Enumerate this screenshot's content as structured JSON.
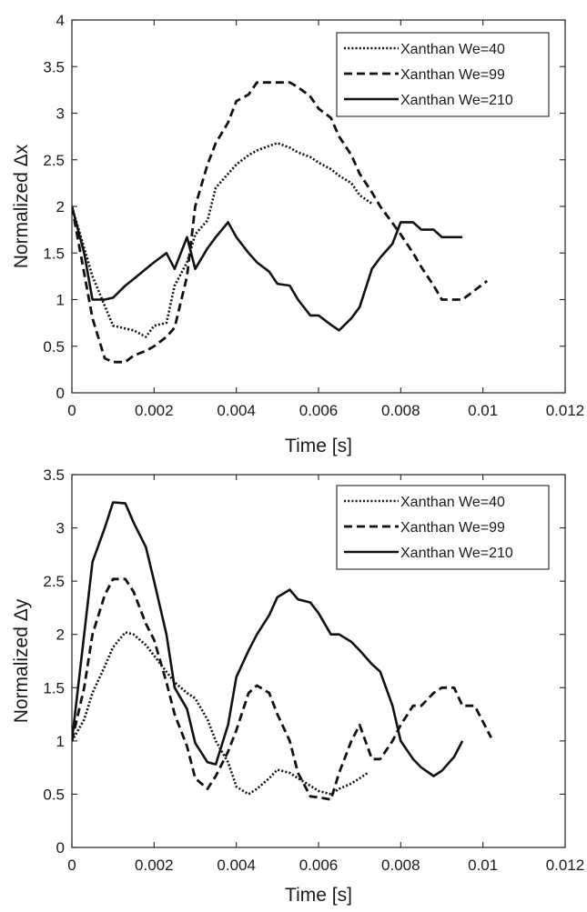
{
  "chart_data": [
    {
      "type": "line",
      "xlabel": "Time [s]",
      "ylabel": "Normalized Δx",
      "xlim": [
        0,
        0.012
      ],
      "ylim": [
        0,
        4
      ],
      "xticks": [
        0,
        0.002,
        0.004,
        0.006,
        0.008,
        0.01,
        0.012
      ],
      "xtick_labels": [
        "0",
        "0.002",
        "0.004",
        "0.006",
        "0.008",
        "0.01",
        "0.012"
      ],
      "yticks": [
        0,
        0.5,
        1,
        1.5,
        2,
        2.5,
        3,
        3.5,
        4
      ],
      "ytick_labels": [
        "0",
        "0.5",
        "1",
        "1.5",
        "2",
        "2.5",
        "3",
        "3.5",
        "4"
      ],
      "grid": false,
      "legend_position": "top-right",
      "series": [
        {
          "name": "Xanthan We=40",
          "style": "dotted",
          "x": [
            0,
            0.0005,
            0.001,
            0.0015,
            0.0018,
            0.002,
            0.0023,
            0.0025,
            0.0028,
            0.003,
            0.0033,
            0.0035,
            0.0038,
            0.004,
            0.0043,
            0.0045,
            0.0048,
            0.005,
            0.0053,
            0.0055,
            0.0058,
            0.006,
            0.0063,
            0.0065,
            0.0068,
            0.007,
            0.0073
          ],
          "y": [
            2.0,
            1.25,
            0.72,
            0.67,
            0.6,
            0.72,
            0.75,
            1.15,
            1.4,
            1.7,
            1.85,
            2.2,
            2.35,
            2.45,
            2.55,
            2.6,
            2.65,
            2.68,
            2.63,
            2.58,
            2.53,
            2.47,
            2.4,
            2.33,
            2.25,
            2.12,
            2.03
          ]
        },
        {
          "name": "Xanthan We=99",
          "style": "dashed",
          "x": [
            0,
            0.0005,
            0.0008,
            0.001,
            0.0013,
            0.0015,
            0.0018,
            0.002,
            0.0023,
            0.0025,
            0.0028,
            0.003,
            0.0033,
            0.0035,
            0.0038,
            0.004,
            0.0043,
            0.0045,
            0.0048,
            0.005,
            0.0053,
            0.0055,
            0.0058,
            0.006,
            0.0063,
            0.0065,
            0.0068,
            0.007,
            0.0073,
            0.0075,
            0.0078,
            0.008,
            0.0083,
            0.0085,
            0.0088,
            0.009,
            0.0095,
            0.0101
          ],
          "y": [
            2.0,
            0.8,
            0.37,
            0.33,
            0.33,
            0.4,
            0.45,
            0.5,
            0.6,
            0.7,
            1.25,
            2.0,
            2.45,
            2.68,
            2.9,
            3.13,
            3.2,
            3.33,
            3.33,
            3.33,
            3.33,
            3.28,
            3.18,
            3.05,
            2.95,
            2.75,
            2.55,
            2.35,
            2.15,
            2.0,
            1.82,
            1.7,
            1.5,
            1.35,
            1.15,
            1.0,
            1.0,
            1.2
          ]
        },
        {
          "name": "Xanthan We=210",
          "style": "solid",
          "x": [
            0,
            0.0003,
            0.0005,
            0.0008,
            0.001,
            0.0013,
            0.0015,
            0.0018,
            0.002,
            0.0023,
            0.0025,
            0.0028,
            0.003,
            0.0033,
            0.0035,
            0.0038,
            0.004,
            0.0043,
            0.0045,
            0.0048,
            0.005,
            0.0053,
            0.0055,
            0.0058,
            0.006,
            0.0063,
            0.0065,
            0.0068,
            0.007,
            0.0073,
            0.0075,
            0.0078,
            0.008,
            0.0083,
            0.0085,
            0.0088,
            0.009,
            0.0093,
            0.0095
          ],
          "y": [
            2.0,
            1.5,
            1.0,
            1.0,
            1.02,
            1.15,
            1.22,
            1.33,
            1.4,
            1.5,
            1.33,
            1.67,
            1.33,
            1.55,
            1.67,
            1.83,
            1.67,
            1.5,
            1.4,
            1.3,
            1.17,
            1.15,
            1.0,
            0.83,
            0.83,
            0.73,
            0.67,
            0.8,
            0.92,
            1.33,
            1.45,
            1.6,
            1.83,
            1.83,
            1.75,
            1.75,
            1.67,
            1.67,
            1.67
          ]
        }
      ]
    },
    {
      "type": "line",
      "xlabel": "Time [s]",
      "ylabel": "Normalized Δy",
      "xlim": [
        0,
        0.012
      ],
      "ylim": [
        0,
        3.5
      ],
      "xticks": [
        0,
        0.002,
        0.004,
        0.006,
        0.008,
        0.01,
        0.012
      ],
      "xtick_labels": [
        "0",
        "0.002",
        "0.004",
        "0.006",
        "0.008",
        "0.01",
        "0.012"
      ],
      "yticks": [
        0,
        0.5,
        1,
        1.5,
        2,
        2.5,
        3,
        3.5
      ],
      "ytick_labels": [
        "0",
        "0.5",
        "1",
        "1.5",
        "2",
        "2.5",
        "3",
        "3.5"
      ],
      "grid": false,
      "legend_position": "top-right",
      "series": [
        {
          "name": "Xanthan We=40",
          "style": "dotted",
          "x": [
            0,
            0.0003,
            0.0005,
            0.0008,
            0.001,
            0.0013,
            0.0015,
            0.0018,
            0.002,
            0.0023,
            0.0025,
            0.0028,
            0.003,
            0.0033,
            0.0035,
            0.0038,
            0.004,
            0.0043,
            0.0045,
            0.0048,
            0.005,
            0.0053,
            0.0055,
            0.0058,
            0.006,
            0.0063,
            0.0065,
            0.0068,
            0.007,
            0.0072
          ],
          "y": [
            1.0,
            1.2,
            1.45,
            1.7,
            1.88,
            2.02,
            2.0,
            1.9,
            1.8,
            1.65,
            1.55,
            1.45,
            1.4,
            1.2,
            1.0,
            0.8,
            0.57,
            0.5,
            0.55,
            0.65,
            0.73,
            0.7,
            0.65,
            0.58,
            0.53,
            0.5,
            0.55,
            0.6,
            0.65,
            0.7
          ]
        },
        {
          "name": "Xanthan We=99",
          "style": "dashed",
          "x": [
            0,
            0.0003,
            0.0005,
            0.0008,
            0.001,
            0.0013,
            0.0015,
            0.0018,
            0.002,
            0.0023,
            0.0025,
            0.0028,
            0.003,
            0.0033,
            0.0035,
            0.0038,
            0.004,
            0.0043,
            0.0045,
            0.0048,
            0.005,
            0.0053,
            0.0055,
            0.0058,
            0.006,
            0.0063,
            0.0065,
            0.0068,
            0.007,
            0.0073,
            0.0075,
            0.0078,
            0.008,
            0.0083,
            0.0085,
            0.0088,
            0.009,
            0.0093,
            0.0095,
            0.0098,
            0.0102
          ],
          "y": [
            1.0,
            1.5,
            2.0,
            2.37,
            2.52,
            2.52,
            2.4,
            2.1,
            1.95,
            1.55,
            1.25,
            0.95,
            0.65,
            0.55,
            0.67,
            0.9,
            1.1,
            1.45,
            1.52,
            1.45,
            1.25,
            1.0,
            0.7,
            0.48,
            0.47,
            0.45,
            0.7,
            1.0,
            1.15,
            0.83,
            0.83,
            1.0,
            1.15,
            1.33,
            1.33,
            1.45,
            1.5,
            1.5,
            1.33,
            1.33,
            1.03
          ]
        },
        {
          "name": "Xanthan We=210",
          "style": "solid",
          "x": [
            0,
            0.0003,
            0.0005,
            0.0008,
            0.001,
            0.0013,
            0.0015,
            0.0018,
            0.002,
            0.0023,
            0.0025,
            0.0028,
            0.003,
            0.0033,
            0.0035,
            0.0038,
            0.004,
            0.0043,
            0.0045,
            0.0048,
            0.005,
            0.0053,
            0.0055,
            0.0058,
            0.006,
            0.0063,
            0.0065,
            0.0068,
            0.007,
            0.0073,
            0.0075,
            0.0078,
            0.008,
            0.0083,
            0.0085,
            0.0088,
            0.009,
            0.0093,
            0.0095
          ],
          "y": [
            1.0,
            2.0,
            2.68,
            3.0,
            3.24,
            3.23,
            3.05,
            2.82,
            2.5,
            2.0,
            1.5,
            1.3,
            0.98,
            0.8,
            0.78,
            1.15,
            1.6,
            1.85,
            2.0,
            2.18,
            2.35,
            2.42,
            2.33,
            2.3,
            2.2,
            2.0,
            2.0,
            1.93,
            1.85,
            1.72,
            1.65,
            1.33,
            1.0,
            0.83,
            0.75,
            0.67,
            0.72,
            0.85,
            1.0
          ]
        }
      ]
    }
  ]
}
